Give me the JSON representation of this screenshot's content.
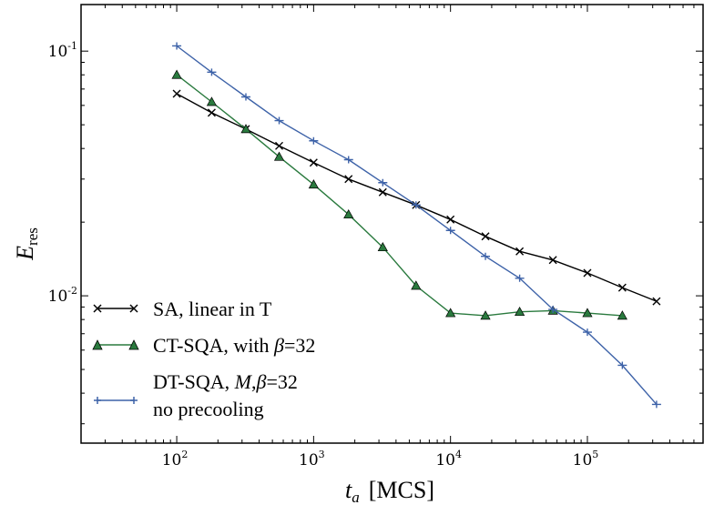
{
  "chart_data": {
    "type": "line",
    "xscale": "log",
    "yscale": "log",
    "xlim": [
      20,
      700000
    ],
    "ylim": [
      0.0025,
      0.155
    ],
    "xlabel": {
      "var": "t",
      "sub": "a",
      "unit": "[MCS]"
    },
    "ylabel": {
      "var": "E",
      "sub": "res"
    },
    "x_ticks": [
      {
        "value": 100,
        "base": "10",
        "exp": "2"
      },
      {
        "value": 1000,
        "base": "10",
        "exp": "3"
      },
      {
        "value": 10000,
        "base": "10",
        "exp": "4"
      },
      {
        "value": 100000,
        "base": "10",
        "exp": "5"
      }
    ],
    "y_ticks": [
      {
        "value": 0.1,
        "base": "10",
        "exp": "-1"
      },
      {
        "value": 0.01,
        "base": "10",
        "exp": "-2"
      }
    ],
    "legend_position": "lower-left",
    "series": [
      {
        "name": "SA, linear in T",
        "color": "#000000",
        "marker": "x",
        "points": [
          [
            100,
            0.067
          ],
          [
            180,
            0.056
          ],
          [
            320,
            0.048
          ],
          [
            560,
            0.041
          ],
          [
            1000,
            0.035
          ],
          [
            1800,
            0.03
          ],
          [
            3200,
            0.0265
          ],
          [
            5600,
            0.0235
          ],
          [
            10000,
            0.0205
          ],
          [
            18000,
            0.0175
          ],
          [
            32000,
            0.0152
          ],
          [
            56000,
            0.014
          ],
          [
            100000,
            0.0124
          ],
          [
            180000,
            0.0108
          ],
          [
            320000,
            0.0095
          ]
        ]
      },
      {
        "name": "CT-SQA, with β=32",
        "legend_parts": [
          "CT-SQA, with ",
          "β",
          "=32"
        ],
        "color": "#2a7a3e",
        "marker": "triangle",
        "points": [
          [
            100,
            0.08
          ],
          [
            180,
            0.062
          ],
          [
            320,
            0.048
          ],
          [
            560,
            0.037
          ],
          [
            1000,
            0.0285
          ],
          [
            1800,
            0.0215
          ],
          [
            3200,
            0.0158
          ],
          [
            5600,
            0.011
          ],
          [
            10000,
            0.0085
          ],
          [
            18000,
            0.0083
          ],
          [
            32000,
            0.0086
          ],
          [
            56000,
            0.0087
          ],
          [
            100000,
            0.0085
          ],
          [
            180000,
            0.0083
          ]
        ]
      },
      {
        "name": "DT-SQA, M,β=32 no precooling",
        "legend_parts": [
          "DT-SQA, ",
          "M",
          ",",
          "β",
          "=32"
        ],
        "legend_line2": "no precooling",
        "color": "#3d62a8",
        "marker": "plus",
        "points": [
          [
            100,
            0.105
          ],
          [
            180,
            0.082
          ],
          [
            320,
            0.065
          ],
          [
            560,
            0.052
          ],
          [
            1000,
            0.043
          ],
          [
            1800,
            0.036
          ],
          [
            3200,
            0.029
          ],
          [
            5600,
            0.0235
          ],
          [
            10000,
            0.0185
          ],
          [
            18000,
            0.0145
          ],
          [
            32000,
            0.0118
          ],
          [
            56000,
            0.0088
          ],
          [
            100000,
            0.0071
          ],
          [
            180000,
            0.0052
          ],
          [
            320000,
            0.0036
          ]
        ]
      }
    ]
  }
}
